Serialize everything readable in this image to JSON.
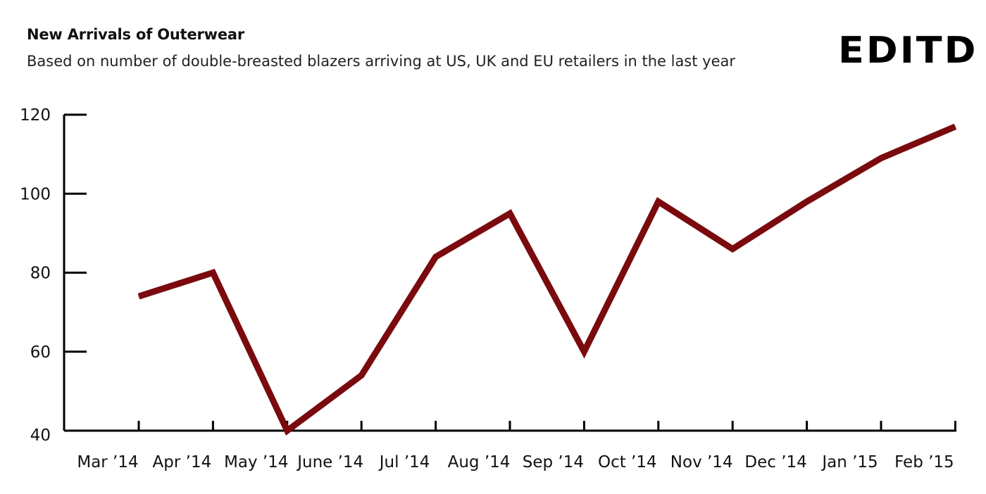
{
  "logo": {
    "text": "EDITD"
  },
  "chart_data": {
    "type": "line",
    "title": "New Arrivals of Outerwear",
    "subtitle": "Based on number of double-breasted blazers arriving at US, UK and EU retailers in the last year",
    "xlabel": "",
    "ylabel": "",
    "ylim": [
      40,
      120
    ],
    "yticks": [
      40,
      60,
      80,
      100,
      120
    ],
    "grid": false,
    "categories": [
      "Mar '14",
      "Apr '14",
      "May '14",
      "June '14",
      "Jul '14",
      "Aug '14",
      "Sep '14",
      "Oct '14",
      "Nov '14",
      "Dec '14",
      "Jan '15",
      "Feb '15"
    ],
    "series": [
      {
        "color": "#7a0a0e",
        "values": [
          74,
          80,
          40,
          54,
          84,
          95,
          60,
          98,
          86,
          98,
          109,
          117
        ]
      }
    ]
  }
}
